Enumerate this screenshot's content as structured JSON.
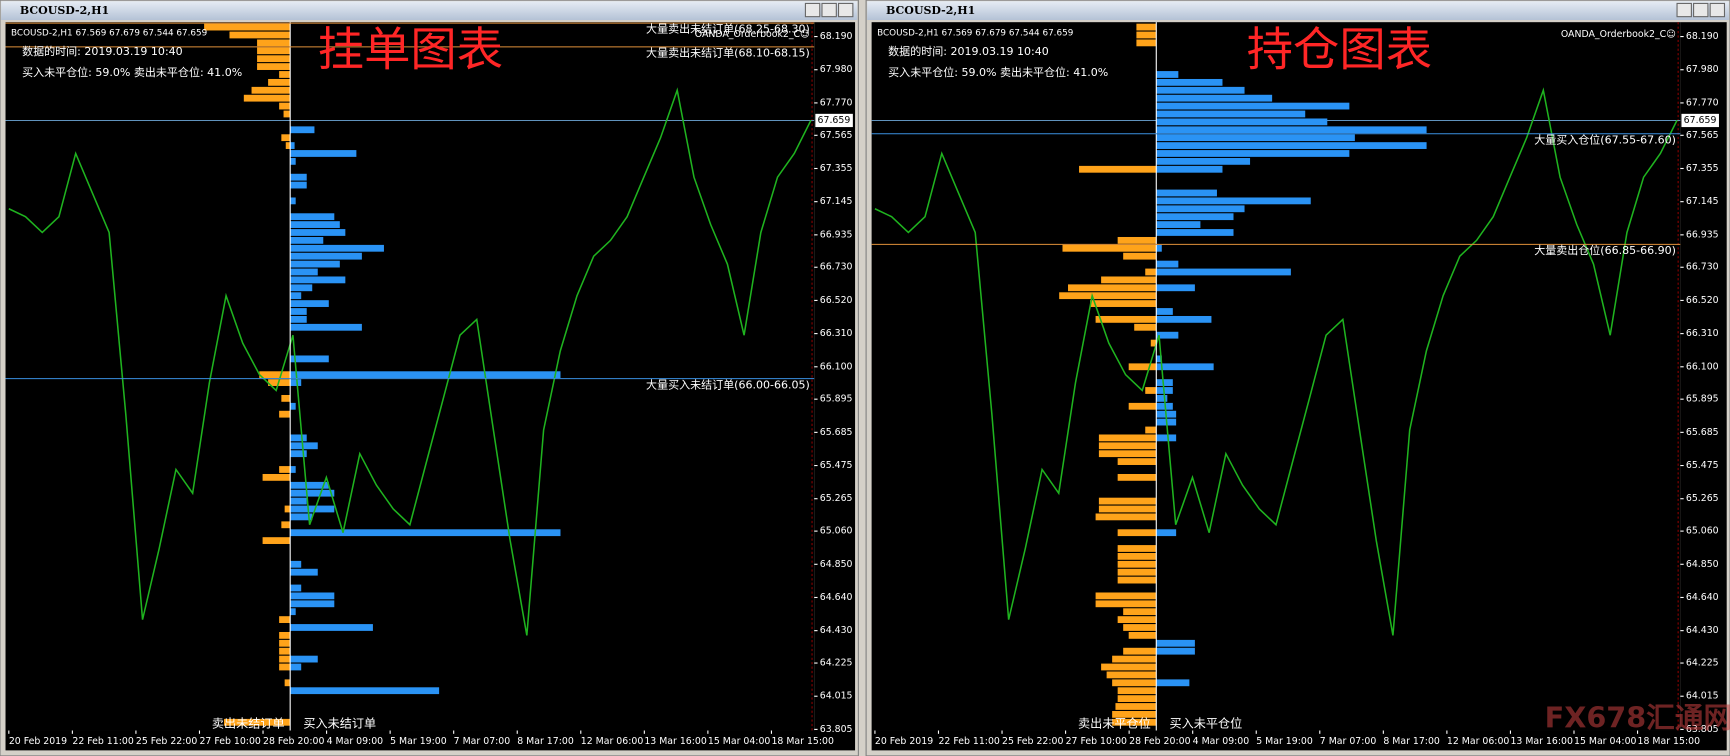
{
  "ylim": [
    63.798,
    68.281
  ],
  "yticks": [
    {
      "value": 68.19,
      "label": "68.190"
    },
    {
      "value": 67.98,
      "label": "67.980"
    },
    {
      "value": 67.77,
      "label": "67.770"
    },
    67.565,
    67.355,
    67.145,
    66.935,
    {
      "value": 66.73,
      "label": "66.730"
    },
    {
      "value": 66.52,
      "label": "66.520"
    },
    {
      "value": 66.31,
      "label": "66.310"
    },
    {
      "value": 66.1,
      "label": "66.100"
    },
    65.895,
    65.685,
    65.475,
    65.265,
    {
      "value": 65.06,
      "label": "65.060"
    },
    {
      "value": 64.85,
      "label": "64.850"
    },
    {
      "value": 64.64,
      "label": "64.640"
    },
    {
      "value": 64.43,
      "label": "64.430"
    },
    64.225,
    64.015,
    63.805
  ],
  "last_price": 67.659,
  "xticks": [
    "20 Feb 2019",
    "22 Feb 11:00",
    "25 Feb 22:00",
    "27 Feb 10:00",
    "28 Feb 20:00",
    "4 Mar 09:00",
    "5 Mar 19:00",
    "7 Mar 07:00",
    "8 Mar 17:00",
    "12 Mar 06:00",
    "13 Mar 16:00",
    "15 Mar 04:00",
    "18 Mar 15:00"
  ],
  "price": {
    "color": "#1fb31f",
    "values": [
      67.1,
      67.05,
      66.95,
      67.05,
      67.45,
      67.2,
      66.95,
      65.8,
      64.5,
      64.95,
      65.45,
      65.3,
      66.0,
      66.55,
      66.25,
      66.05,
      65.95,
      66.3,
      65.1,
      65.4,
      65.05,
      65.55,
      65.35,
      65.2,
      65.1,
      65.5,
      65.9,
      66.3,
      66.4,
      65.7,
      65.0,
      64.4,
      65.7,
      66.2,
      66.55,
      66.8,
      66.9,
      67.05,
      67.3,
      67.55,
      67.85,
      67.3,
      67.0,
      66.75,
      66.3,
      66.95,
      67.3,
      67.45,
      67.66
    ]
  },
  "watermark": "FX678汇通网",
  "windows": [
    {
      "title": "BCOUSD-2,H1",
      "info": "BCOUSD-2,H1  67.569 67.679 67.544 67.659",
      "indicator": "OANDA_Orderbook2_C☺",
      "time_label": "数据的时间: 2019.03.19 10:40",
      "ratio_label": "买入未平仓位: 59.0%  卖出未平仓位: 41.0%",
      "heading": "挂单图表",
      "sell_label": "卖出未结订单",
      "buy_label": "买入未结订单",
      "levels": [
        {
          "price": 68.275,
          "label": "大量卖出未结订单(68.25-68.30)",
          "color": "#e0913a"
        },
        {
          "price": 68.125,
          "label": "大量卖出未结订单(68.10-68.15)",
          "color": "#e0913a"
        },
        {
          "price": 66.025,
          "label": "大量买入未结订单(66.00-66.05)",
          "color": "#3a8fe0"
        }
      ],
      "sell_bars": {
        "color": "#ffa31a",
        "prices": [
          68.25,
          68.2,
          68.15,
          68.1,
          68.05,
          68.0,
          67.95,
          67.9,
          67.85,
          67.8,
          67.75,
          67.7,
          67.55,
          67.5,
          66.05,
          66.0,
          65.9,
          65.8,
          65.45,
          65.4,
          65.2,
          65.1,
          65.0,
          64.5,
          64.4,
          64.35,
          64.3,
          64.25,
          64.2,
          64.1,
          63.85
        ],
        "values": [
          0.78,
          0.55,
          0.3,
          0.3,
          0.3,
          0.3,
          0.1,
          0.2,
          0.35,
          0.42,
          0.1,
          0.06,
          0.08,
          0.04,
          0.28,
          0.2,
          0.08,
          0.1,
          0.1,
          0.25,
          0.05,
          0.08,
          0.25,
          0.1,
          0.1,
          0.1,
          0.1,
          0.1,
          0.1,
          0.05,
          0.6
        ]
      },
      "buy_bars": {
        "color": "#2a93f5",
        "prices": [
          67.6,
          67.5,
          67.45,
          67.4,
          67.3,
          67.25,
          67.15,
          67.05,
          67.0,
          66.95,
          66.9,
          66.85,
          66.8,
          66.75,
          66.7,
          66.65,
          66.6,
          66.55,
          66.5,
          66.45,
          66.4,
          66.35,
          66.15,
          66.05,
          66.0,
          65.85,
          65.65,
          65.6,
          65.55,
          65.45,
          65.35,
          65.3,
          65.25,
          65.2,
          65.15,
          65.05,
          64.85,
          64.8,
          64.7,
          64.65,
          64.6,
          64.55,
          64.45,
          64.25,
          64.2,
          64.05
        ],
        "values": [
          0.22,
          0.04,
          0.6,
          0.05,
          0.15,
          0.15,
          0.05,
          0.4,
          0.45,
          0.5,
          0.3,
          0.85,
          0.65,
          0.45,
          0.25,
          0.5,
          0.2,
          0.1,
          0.35,
          0.15,
          0.15,
          0.65,
          0.35,
          2.45,
          0.1,
          0.05,
          0.15,
          0.25,
          0.15,
          0.05,
          0.35,
          0.4,
          0.15,
          0.4,
          0.2,
          2.45,
          0.1,
          0.25,
          0.1,
          0.4,
          0.4,
          0.05,
          0.75,
          0.25,
          0.1,
          1.35
        ]
      }
    },
    {
      "title": "BCOUSD-2,H1",
      "info": "BCOUSD-2,H1  67.569 67.679 67.544 67.659",
      "indicator": "OANDA_Orderbook2_C☺",
      "time_label": "数据的时间: 2019.03.19 10:40",
      "ratio_label": "买入未平仓位: 59.0%  卖出未平仓位: 41.0%",
      "heading": "持仓图表",
      "sell_label": "卖出未平仓位",
      "buy_label": "买入未平仓位",
      "levels": [
        {
          "price": 67.575,
          "label": "大量买入仓位(67.55-67.60)",
          "color": "#3a8fe0"
        },
        {
          "price": 66.875,
          "label": "大量卖出仓位(66.85-66.90)",
          "color": "#e0913a"
        }
      ],
      "sell_bars": {
        "color": "#ffa31a",
        "prices": [
          68.25,
          68.2,
          68.15,
          67.35,
          66.9,
          66.85,
          66.8,
          66.7,
          66.65,
          66.6,
          66.55,
          66.5,
          66.4,
          66.35,
          66.25,
          66.1,
          65.95,
          65.85,
          65.7,
          65.65,
          65.6,
          65.55,
          65.5,
          65.4,
          65.25,
          65.2,
          65.15,
          65.05,
          64.95,
          64.9,
          64.85,
          64.8,
          64.75,
          64.65,
          64.6,
          64.55,
          64.5,
          64.45,
          64.4,
          64.3,
          64.25,
          64.2,
          64.15,
          64.1,
          64.05,
          64.0,
          63.95,
          63.9,
          63.85
        ],
        "values": [
          0.18,
          0.18,
          0.18,
          0.7,
          0.35,
          0.85,
          0.3,
          0.1,
          0.5,
          0.8,
          0.88,
          0.6,
          0.55,
          0.2,
          0.05,
          0.25,
          0.1,
          0.25,
          0.1,
          0.52,
          0.52,
          0.52,
          0.35,
          0.35,
          0.52,
          0.52,
          0.55,
          0.35,
          0.35,
          0.35,
          0.35,
          0.35,
          0.35,
          0.55,
          0.55,
          0.3,
          0.35,
          0.3,
          0.25,
          0.3,
          0.4,
          0.5,
          0.45,
          0.4,
          0.35,
          0.35,
          0.37,
          0.4,
          0.4
        ]
      },
      "buy_bars": {
        "color": "#2a93f5",
        "prices": [
          67.95,
          67.9,
          67.85,
          67.8,
          67.75,
          67.7,
          67.65,
          67.6,
          67.55,
          67.5,
          67.45,
          67.4,
          67.35,
          67.2,
          67.15,
          67.1,
          67.05,
          67.0,
          66.95,
          66.85,
          66.75,
          66.7,
          66.6,
          66.45,
          66.4,
          66.3,
          66.15,
          66.1,
          66.0,
          65.95,
          65.9,
          65.85,
          65.8,
          65.75,
          65.65,
          65.05,
          64.35,
          64.3,
          64.1
        ],
        "values": [
          0.2,
          0.6,
          0.8,
          1.05,
          1.75,
          1.35,
          1.55,
          2.45,
          1.8,
          2.45,
          1.75,
          0.85,
          0.6,
          0.55,
          1.4,
          0.8,
          0.7,
          0.4,
          0.7,
          0.05,
          0.2,
          1.22,
          0.35,
          0.15,
          0.5,
          0.2,
          0.05,
          0.52,
          0.15,
          0.15,
          0.1,
          0.15,
          0.18,
          0.18,
          0.18,
          0.18,
          0.35,
          0.35,
          0.3
        ]
      }
    }
  ]
}
